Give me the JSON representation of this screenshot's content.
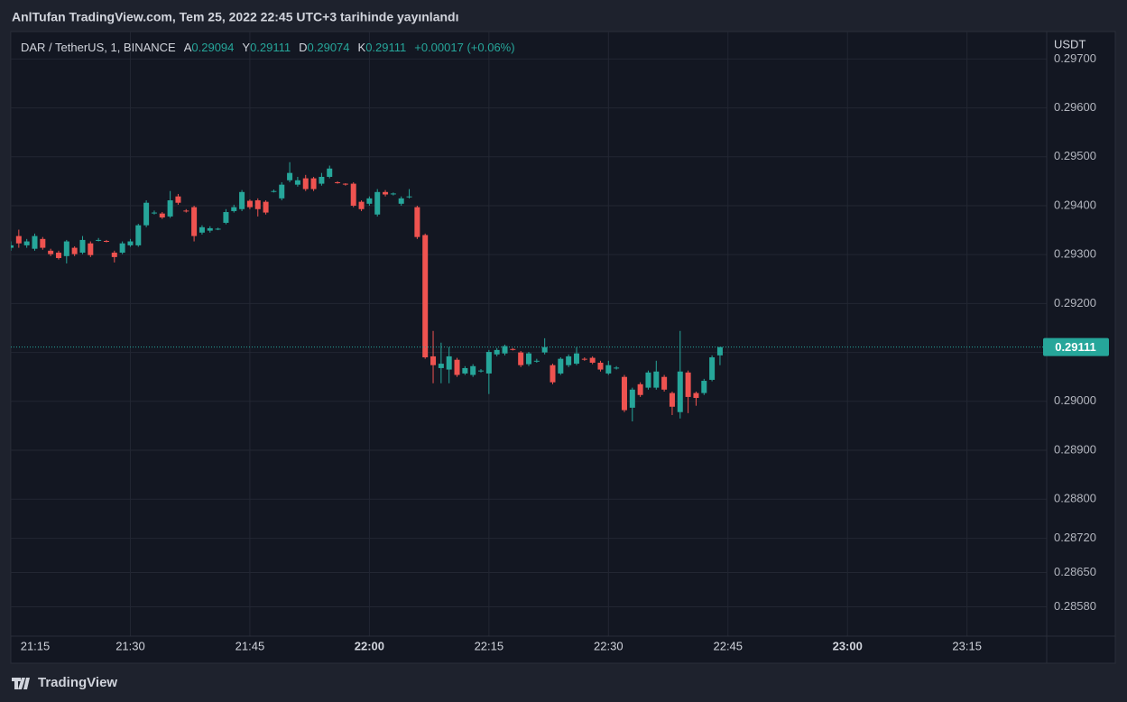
{
  "header": {
    "title": "AnlTufan TradingView.com, Tem 25, 2022 22:45 UTC+3 tarihinde yayınlandı"
  },
  "chart_data": {
    "type": "candlestick",
    "symbol": "DAR / TetherUS, 1, BINANCE",
    "ohlc_labels": {
      "open": "A",
      "high": "Y",
      "low": "D",
      "close": "K"
    },
    "change_label": "+0.00017 (+0.06%)",
    "y_unit": "USDT",
    "up_color": "#26a69a",
    "down_color": "#ef5350",
    "x": [
      "21:15",
      "21:16",
      "21:17",
      "21:18",
      "21:19",
      "21:20",
      "21:21",
      "21:22",
      "21:23",
      "21:24",
      "21:25",
      "21:26",
      "21:27",
      "21:28",
      "21:29",
      "21:30",
      "21:31",
      "21:32",
      "21:33",
      "21:34",
      "21:35",
      "21:36",
      "21:37",
      "21:38",
      "21:39",
      "21:40",
      "21:41",
      "21:42",
      "21:43",
      "21:44",
      "21:45",
      "21:46",
      "21:47",
      "21:48",
      "21:49",
      "21:50",
      "21:51",
      "21:52",
      "21:53",
      "21:54",
      "21:55",
      "21:56",
      "21:57",
      "21:58",
      "21:59",
      "22:00",
      "22:01",
      "22:02",
      "22:03",
      "22:04",
      "22:05",
      "22:06",
      "22:07",
      "22:08",
      "22:09",
      "22:10",
      "22:11",
      "22:12",
      "22:13",
      "22:14",
      "22:15",
      "22:16",
      "22:17",
      "22:18",
      "22:19",
      "22:20",
      "22:21",
      "22:22",
      "22:23",
      "22:24",
      "22:25",
      "22:26",
      "22:27",
      "22:28",
      "22:29",
      "22:30",
      "22:31",
      "22:32",
      "22:33",
      "22:34",
      "22:35",
      "22:36",
      "22:37",
      "22:38",
      "22:39",
      "22:40",
      "22:41",
      "22:42",
      "22:43",
      "22:44"
    ],
    "open": [
      0.29314,
      0.29338,
      0.29319,
      0.29312,
      0.29332,
      0.29308,
      0.29304,
      0.29297,
      0.29314,
      0.29304,
      0.29323,
      0.29329,
      0.29328,
      0.29304,
      0.29304,
      0.29319,
      0.29319,
      0.2936,
      0.29385,
      0.29384,
      0.29378,
      0.29419,
      0.2939,
      0.29397,
      0.29345,
      0.29349,
      0.29352,
      0.29365,
      0.29389,
      0.29393,
      0.2941,
      0.29411,
      0.29408,
      0.29429,
      0.29415,
      0.29452,
      0.29443,
      0.29456,
      0.29456,
      0.29445,
      0.29459,
      0.29448,
      0.29445,
      0.29445,
      0.29408,
      0.29404,
      0.29382,
      0.29428,
      0.29424,
      0.29404,
      0.29418,
      0.29397,
      0.2934,
      0.29092,
      0.29068,
      0.29065,
      0.29085,
      0.29057,
      0.29054,
      0.29062,
      0.29057,
      0.29096,
      0.29098,
      0.29107,
      0.291,
      0.29076,
      0.29082,
      0.291,
      0.29074,
      0.29057,
      0.29074,
      0.29077,
      0.29087,
      0.29089,
      0.29079,
      0.29057,
      0.29068,
      0.2905,
      0.28987,
      0.29035,
      0.29028,
      0.29028,
      0.2905,
      0.29017,
      0.28978,
      0.29059,
      0.29017,
      0.29017,
      0.29044,
      0.29094
    ],
    "high": [
      0.29327,
      0.29351,
      0.29332,
      0.29343,
      0.29336,
      0.29312,
      0.29308,
      0.2933,
      0.29317,
      0.29338,
      0.29327,
      0.29334,
      0.2933,
      0.29308,
      0.29327,
      0.29332,
      0.29363,
      0.29411,
      0.2939,
      0.29387,
      0.2943,
      0.29424,
      0.29393,
      0.294,
      0.2936,
      0.29358,
      0.29355,
      0.29393,
      0.29402,
      0.29432,
      0.29413,
      0.29415,
      0.29411,
      0.29433,
      0.29448,
      0.29489,
      0.29459,
      0.29463,
      0.29459,
      0.29467,
      0.29482,
      0.2945,
      0.29446,
      0.29448,
      0.29411,
      0.29419,
      0.29434,
      0.29432,
      0.29427,
      0.29419,
      0.29434,
      0.294,
      0.29343,
      0.29144,
      0.2912,
      0.29111,
      0.29089,
      0.29072,
      0.29076,
      0.29066,
      0.29105,
      0.29109,
      0.29116,
      0.29109,
      0.29103,
      0.29101,
      0.29087,
      0.29129,
      0.29077,
      0.2909,
      0.29096,
      0.29111,
      0.2909,
      0.29092,
      0.29083,
      0.29083,
      0.29072,
      0.29054,
      0.29028,
      0.29039,
      0.29063,
      0.29083,
      0.29054,
      0.2902,
      0.29144,
      0.29063,
      0.2902,
      0.29046,
      0.29094,
      0.29111
    ],
    "low": [
      0.29308,
      0.29314,
      0.29314,
      0.29308,
      0.2931,
      0.29297,
      0.2929,
      0.29282,
      0.29297,
      0.29301,
      0.29295,
      0.29327,
      0.29325,
      0.29284,
      0.29301,
      0.29316,
      0.29316,
      0.29356,
      0.29382,
      0.29373,
      0.29375,
      0.29402,
      0.29386,
      0.29327,
      0.29341,
      0.29345,
      0.2935,
      0.29362,
      0.29386,
      0.29389,
      0.29393,
      0.29378,
      0.29382,
      0.29427,
      0.29411,
      0.29448,
      0.29439,
      0.2943,
      0.2943,
      0.29441,
      0.29456,
      0.29445,
      0.29441,
      0.29397,
      0.29389,
      0.294,
      0.29378,
      0.29419,
      0.29421,
      0.294,
      0.29415,
      0.29332,
      0.29087,
      0.29037,
      0.29037,
      0.29037,
      0.2905,
      0.29054,
      0.2905,
      0.29059,
      0.29015,
      0.29092,
      0.29094,
      0.29104,
      0.2907,
      0.29072,
      0.29079,
      0.29096,
      0.29035,
      0.29054,
      0.2907,
      0.29074,
      0.29083,
      0.29076,
      0.29061,
      0.29054,
      0.29065,
      0.28978,
      0.28959,
      0.29009,
      0.29024,
      0.29024,
      0.2902,
      0.28972,
      0.28965,
      0.28976,
      0.28991,
      0.29013,
      0.29041,
      0.29074
    ],
    "close": [
      0.29319,
      0.29323,
      0.29327,
      0.29338,
      0.29314,
      0.29301,
      0.29293,
      0.29327,
      0.29301,
      0.2933,
      0.29299,
      0.2933,
      0.29327,
      0.29295,
      0.29323,
      0.29327,
      0.2936,
      0.29406,
      0.29386,
      0.29376,
      0.29411,
      0.29406,
      0.29389,
      0.29338,
      0.29356,
      0.29354,
      0.29353,
      0.29387,
      0.29397,
      0.29428,
      0.29397,
      0.29393,
      0.29386,
      0.2943,
      0.29443,
      0.29467,
      0.29452,
      0.29434,
      0.29434,
      0.29459,
      0.29476,
      0.29447,
      0.29444,
      0.294,
      0.29393,
      0.29415,
      0.29428,
      0.29423,
      0.29425,
      0.29415,
      0.29419,
      0.29336,
      0.2909,
      0.29074,
      0.29077,
      0.29092,
      0.29054,
      0.29068,
      0.29072,
      0.29063,
      0.29101,
      0.29105,
      0.29113,
      0.29106,
      0.29074,
      0.29098,
      0.29083,
      0.29111,
      0.29039,
      0.29087,
      0.29092,
      0.29098,
      0.29086,
      0.29079,
      0.29065,
      0.29074,
      0.29069,
      0.28982,
      0.29024,
      0.29013,
      0.29059,
      0.29061,
      0.29024,
      0.28989,
      0.29061,
      0.29009,
      0.29007,
      0.29042,
      0.2909,
      0.29111
    ],
    "ylim": [
      0.2852,
      0.29756
    ],
    "yticks": [
      {
        "value": 0.297,
        "label": "0.29700"
      },
      {
        "value": 0.296,
        "label": "0.29600"
      },
      {
        "value": 0.295,
        "label": "0.29500"
      },
      {
        "value": 0.294,
        "label": "0.29400"
      },
      {
        "value": 0.293,
        "label": "0.29300"
      },
      {
        "value": 0.292,
        "label": "0.29200"
      },
      {
        "value": 0.291,
        "label": "0.29100"
      },
      {
        "value": 0.29,
        "label": "0.29000"
      },
      {
        "value": 0.289,
        "label": "0.28900"
      },
      {
        "value": 0.288,
        "label": "0.28800"
      },
      {
        "value": 0.2872,
        "label": "0.28720"
      },
      {
        "value": 0.2865,
        "label": "0.28650"
      },
      {
        "value": 0.2858,
        "label": "0.28580"
      }
    ],
    "xlim": [
      "21:15",
      "23:25"
    ],
    "xticks": [
      "21:15",
      "21:30",
      "21:45",
      "22:00",
      "22:15",
      "22:30",
      "22:45",
      "23:00",
      "23:15"
    ],
    "grid": true
  },
  "footer": {
    "brand": "TradingView"
  }
}
